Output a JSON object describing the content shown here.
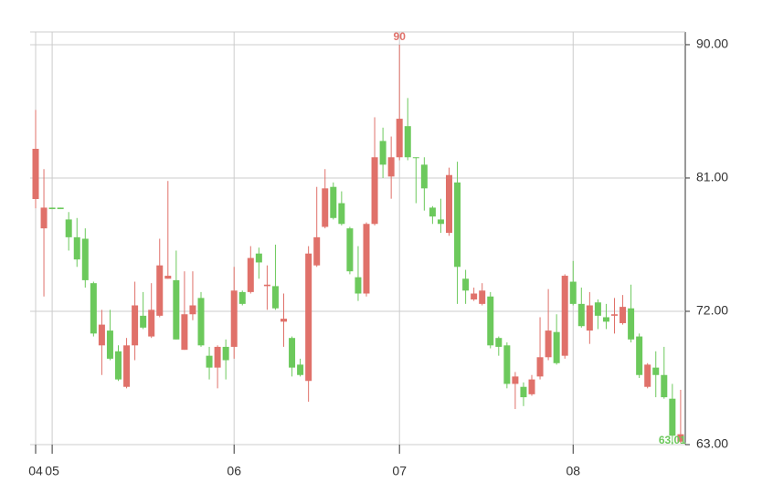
{
  "chart_data": {
    "type": "candlestick",
    "categories": [
      "04",
      null,
      "05",
      null,
      null,
      null,
      null,
      null,
      null,
      null,
      null,
      null,
      null,
      null,
      null,
      null,
      null,
      null,
      null,
      null,
      null,
      null,
      null,
      null,
      "06",
      null,
      null,
      null,
      null,
      null,
      null,
      null,
      null,
      null,
      null,
      null,
      null,
      null,
      null,
      null,
      null,
      null,
      null,
      null,
      "07",
      null,
      null,
      null,
      null,
      null,
      null,
      null,
      null,
      null,
      null,
      null,
      null,
      null,
      null,
      null,
      null,
      null,
      null,
      null,
      null,
      "08",
      null,
      null,
      null,
      null,
      null,
      null,
      null,
      null,
      null,
      null,
      null,
      null,
      null
    ],
    "open": [
      79.58,
      77.6,
      79.0,
      79.0,
      78.2,
      77.0,
      76.9,
      73.9,
      69.7,
      70.7,
      69.3,
      66.9,
      69.7,
      71.7,
      70.3,
      71.7,
      74.2,
      74.1,
      69.4,
      71.8,
      72.9,
      69.0,
      68.2,
      69.6,
      69.6,
      73.3,
      73.3,
      75.9,
      73.7,
      73.7,
      71.3,
      70.2,
      68.4,
      67.3,
      75.1,
      77.7,
      80.4,
      79.3,
      77.6,
      74.3,
      73.2,
      77.9,
      83.5,
      81.1,
      82.4,
      84.5,
      82.4,
      81.9,
      79.0,
      78.2,
      77.3,
      80.7,
      74.2,
      72.8,
      72.5,
      73.0,
      70.2,
      69.7,
      67.1,
      66.9,
      66.4,
      67.6,
      68.9,
      70.6,
      69.0,
      74.0,
      72.5,
      70.7,
      72.6,
      71.6,
      71.7,
      71.2,
      72.2,
      70.3,
      66.9,
      68.2,
      67.7,
      66.1,
      63.2
    ],
    "high": [
      85.6,
      81.6,
      79.0,
      79.0,
      78.7,
      78.3,
      77.6,
      74.0,
      72.1,
      72.1,
      69.7,
      70.2,
      74.0,
      73.3,
      73.9,
      76.9,
      80.8,
      76.1,
      74.7,
      74.7,
      73.3,
      69.6,
      69.7,
      70.1,
      75.0,
      73.4,
      76.4,
      76.3,
      75.1,
      76.5,
      73.2,
      70.3,
      68.8,
      76.4,
      80.4,
      81.6,
      80.7,
      80.1,
      77.7,
      76.4,
      78.0,
      85.1,
      84.4,
      83.8,
      90,
      86.4,
      82.4,
      82.4,
      79.1,
      79.6,
      81.7,
      82.1,
      74.8,
      73.6,
      73.9,
      73.3,
      70.3,
      69.9,
      67.9,
      67.2,
      67.7,
      71.6,
      73.5,
      71.8,
      74.5,
      75.4,
      73.6,
      73.3,
      72.8,
      72.5,
      72.9,
      73.1,
      73.8,
      70.5,
      68.5,
      69.3,
      69.6,
      67.1,
      66.7
    ],
    "low": [
      78.96,
      73.0,
      78.9,
      78.9,
      76.1,
      75.0,
      73.6,
      70.3,
      67.7,
      68.7,
      67.3,
      66.8,
      68.7,
      70.8,
      70.2,
      71.6,
      74.2,
      70.1,
      69.4,
      71.4,
      69.6,
      67.4,
      66.8,
      67.4,
      68.8,
      72.4,
      73.2,
      74.2,
      72.1,
      72.1,
      69.6,
      67.6,
      67.6,
      65.9,
      75.0,
      77.6,
      78.2,
      77.8,
      74.5,
      72.7,
      73.0,
      77.8,
      81.0,
      79.6,
      82.2,
      82.2,
      79.3,
      78.8,
      77.9,
      77.3,
      77.1,
      72.5,
      72.5,
      72.7,
      72.4,
      69.5,
      69.0,
      66.8,
      65.4,
      65.6,
      66.3,
      67.4,
      68.7,
      68.4,
      68.8,
      72.4,
      70.9,
      69.8,
      70.8,
      70.8,
      70.5,
      71.1,
      69.9,
      67.5,
      66.8,
      66.2,
      66.1,
      63.01,
      63.1
    ],
    "close": [
      82.97,
      79.0,
      78.9,
      78.9,
      77.0,
      75.5,
      74.1,
      70.5,
      71.1,
      68.8,
      67.4,
      69.7,
      72.4,
      70.9,
      72.1,
      75.1,
      74.4,
      70.1,
      71.8,
      72.4,
      69.7,
      68.2,
      69.6,
      68.7,
      73.4,
      72.5,
      75.6,
      75.3,
      73.8,
      72.2,
      71.5,
      68.2,
      67.7,
      75.9,
      77.0,
      80.3,
      78.3,
      77.9,
      74.7,
      73.2,
      77.9,
      82.4,
      81.9,
      82.4,
      85.0,
      82.4,
      82.35,
      80.3,
      78.4,
      77.9,
      81.2,
      75.0,
      73.4,
      73.2,
      73.4,
      69.7,
      69.6,
      67.1,
      67.6,
      66.2,
      67.4,
      68.9,
      70.7,
      68.5,
      74.4,
      72.5,
      71.0,
      72.4,
      71.7,
      71.3,
      71.8,
      72.3,
      70.1,
      67.7,
      68.4,
      67.7,
      66.2,
      63.6,
      63.7
    ],
    "up_color": "#e0716a",
    "down_color": "#6cc95c",
    "ylim": [
      63,
      90.86
    ],
    "yticks": [
      {
        "value": 90,
        "label": "90.00"
      },
      {
        "value": 81,
        "label": "81.00"
      },
      {
        "value": 72,
        "label": "72.00"
      },
      {
        "value": 63,
        "label": "63.00"
      }
    ],
    "grid": true
  }
}
